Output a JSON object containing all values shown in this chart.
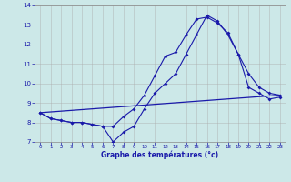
{
  "xlabel": "Graphe des températures (°c)",
  "background_color": "#cce8e8",
  "grid_color": "#aaaaaa",
  "line_color": "#1a1aaa",
  "ylim": [
    7,
    14
  ],
  "xlim": [
    -0.5,
    23.5
  ],
  "yticks": [
    7,
    8,
    9,
    10,
    11,
    12,
    13,
    14
  ],
  "xticks": [
    0,
    1,
    2,
    3,
    4,
    5,
    6,
    7,
    8,
    9,
    10,
    11,
    12,
    13,
    14,
    15,
    16,
    17,
    18,
    19,
    20,
    21,
    22,
    23
  ],
  "series1_x": [
    0,
    1,
    2,
    3,
    4,
    5,
    6,
    7,
    8,
    9,
    10,
    11,
    12,
    13,
    14,
    15,
    16,
    17,
    18,
    19,
    20,
    21,
    22,
    23
  ],
  "series1_y": [
    8.5,
    8.2,
    8.1,
    8.0,
    8.0,
    7.9,
    7.8,
    7.8,
    8.3,
    8.7,
    9.4,
    10.4,
    11.4,
    11.6,
    12.5,
    13.3,
    13.4,
    13.1,
    12.6,
    11.5,
    10.5,
    9.8,
    9.5,
    9.4
  ],
  "series2_x": [
    0,
    1,
    2,
    3,
    4,
    5,
    6,
    7,
    8,
    9,
    10,
    11,
    12,
    13,
    14,
    15,
    16,
    17,
    18,
    19,
    20,
    21,
    22,
    23
  ],
  "series2_y": [
    8.5,
    8.2,
    8.1,
    8.0,
    8.0,
    7.9,
    7.8,
    7.0,
    7.5,
    7.8,
    8.7,
    9.5,
    10.0,
    10.5,
    11.5,
    12.5,
    13.5,
    13.2,
    12.5,
    11.5,
    9.8,
    9.5,
    9.2,
    9.3
  ],
  "series3_x": [
    0,
    23
  ],
  "series3_y": [
    8.5,
    9.4
  ]
}
